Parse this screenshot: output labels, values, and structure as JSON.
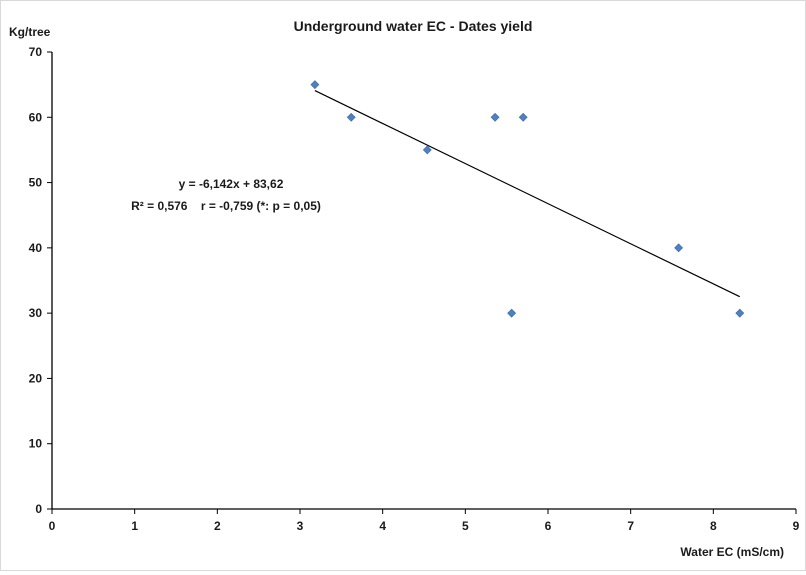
{
  "chart_data": {
    "type": "scatter",
    "title": "Underground water EC -  Dates yield",
    "xlabel": "Water EC (mS/cm)",
    "ylabel": "Kg/tree",
    "xlim": [
      0,
      9
    ],
    "ylim": [
      0,
      70
    ],
    "xticks": [
      0,
      1,
      2,
      3,
      4,
      5,
      6,
      7,
      8,
      9
    ],
    "yticks": [
      0,
      10,
      20,
      30,
      40,
      50,
      60,
      70
    ],
    "grid": false,
    "legend": "none",
    "series": [
      {
        "color": "#4f81bd",
        "marker": "diamond",
        "points": [
          {
            "x": 3.18,
            "y": 65
          },
          {
            "x": 3.62,
            "y": 60
          },
          {
            "x": 4.54,
            "y": 55
          },
          {
            "x": 5.36,
            "y": 60
          },
          {
            "x": 5.7,
            "y": 60
          },
          {
            "x": 5.56,
            "y": 30
          },
          {
            "x": 7.58,
            "y": 40
          },
          {
            "x": 8.32,
            "y": 30
          }
        ]
      }
    ],
    "trendline": {
      "type": "linear",
      "slope": -6.142,
      "intercept": 83.62,
      "x_range": [
        3.18,
        8.32
      ],
      "color": "#000000"
    },
    "annotations": [
      "y = -6,142x + 83,62",
      "R² = 0,576    r = -0,759 (*: p = 0,05)"
    ]
  }
}
